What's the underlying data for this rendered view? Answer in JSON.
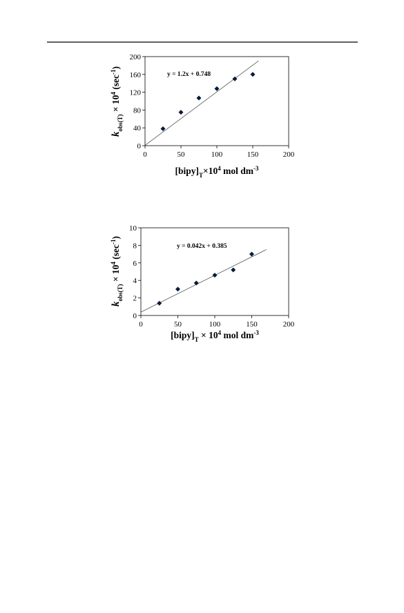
{
  "chart_data": [
    {
      "type": "scatter",
      "x": [
        25,
        50,
        75,
        100,
        125,
        150
      ],
      "values": [
        38,
        75,
        107,
        128,
        150,
        160
      ],
      "color": "#0a1a3a",
      "xlim": [
        0,
        200
      ],
      "xticks": [
        0,
        50,
        100,
        150,
        200
      ],
      "ylim": [
        0,
        200
      ],
      "yticks": [
        0,
        40,
        80,
        120,
        160,
        200
      ],
      "trendline": {
        "label": "y = 1.2x + 0.748",
        "slope": 1.2,
        "intercept": 0.748,
        "x_range": [
          0,
          158
        ]
      },
      "xlabel": [
        {
          "text": "[bipy]"
        },
        {
          "text": "T",
          "pos": "sub"
        },
        {
          "text": "×10"
        },
        {
          "text": "4",
          "pos": "sup"
        },
        {
          "text": " mol dm"
        },
        {
          "text": "-3",
          "pos": "sup"
        }
      ],
      "ylabel": [
        {
          "text": "k",
          "pos": "italic"
        },
        {
          "text": "obs(T)",
          "pos": "sub"
        },
        {
          "text": " × 10"
        },
        {
          "text": "4",
          "pos": "sup"
        },
        {
          "text": " (sec"
        },
        {
          "text": "-1",
          "pos": "sup"
        },
        {
          "text": ")"
        }
      ]
    },
    {
      "type": "scatter",
      "x": [
        25,
        50,
        75,
        100,
        125,
        150
      ],
      "values": [
        1.4,
        3.0,
        3.7,
        4.6,
        5.2,
        7.0
      ],
      "color": "#0a1a3a",
      "xlim": [
        0,
        200
      ],
      "xticks": [
        0,
        50,
        100,
        150,
        200
      ],
      "ylim": [
        0,
        10
      ],
      "yticks": [
        0,
        2,
        4,
        6,
        8,
        10
      ],
      "trendline": {
        "label": "y = 0.042x + 0.385",
        "slope": 0.042,
        "intercept": 0.385,
        "x_range": [
          0,
          170
        ]
      },
      "xlabel": [
        {
          "text": "[bipy]"
        },
        {
          "text": "T",
          "pos": "sub"
        },
        {
          "text": " × 10"
        },
        {
          "text": "4",
          "pos": "sup"
        },
        {
          "text": " mol dm"
        },
        {
          "text": "-3",
          "pos": "sup"
        }
      ],
      "ylabel": [
        {
          "text": "k",
          "pos": "italic"
        },
        {
          "text": "obs(T)",
          "pos": "sub"
        },
        {
          "text": " × 10"
        },
        {
          "text": "4",
          "pos": "sup"
        },
        {
          "text": " (sec"
        },
        {
          "text": "-1",
          "pos": "sup"
        },
        {
          "text": ")"
        }
      ]
    }
  ]
}
